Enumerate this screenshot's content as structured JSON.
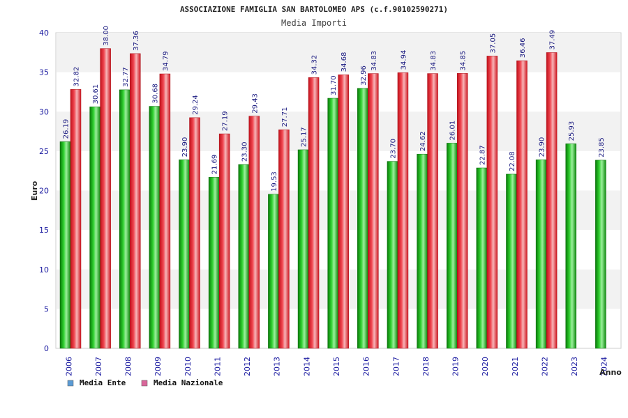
{
  "chart_data": {
    "type": "bar",
    "title": "ASSOCIAZIONE FAMIGLIA SAN BARTOLOMEO APS (c.f.90102590271)",
    "subtitle": "Media Importi",
    "xlabel": "Anno",
    "ylabel": "Euro",
    "ylim": [
      0,
      40
    ],
    "yticks": [
      0,
      5,
      10,
      15,
      20,
      25,
      30,
      35,
      40
    ],
    "grid": "horizontal-bands",
    "legend_position": "bottom-left",
    "categories": [
      "2006",
      "2007",
      "2008",
      "2009",
      "2010",
      "2011",
      "2012",
      "2013",
      "2014",
      "2015",
      "2016",
      "2017",
      "2018",
      "2019",
      "2020",
      "2021",
      "2022",
      "2023",
      "2024"
    ],
    "series": [
      {
        "name": "Media Ente",
        "color": "#16b016",
        "legend_color": "#5b9bd5",
        "values": [
          26.19,
          30.61,
          32.77,
          30.68,
          23.9,
          21.69,
          23.3,
          19.53,
          25.17,
          31.7,
          32.96,
          23.7,
          24.62,
          26.01,
          22.87,
          22.08,
          23.9,
          25.93,
          23.85
        ],
        "labels": [
          "26.19",
          "30.61",
          "32.77",
          "30.68",
          "23.90",
          "21.69",
          "23.30",
          "19.53",
          "25.17",
          "31.70",
          "32.96",
          "23.70",
          "24.62",
          "26.01",
          "22.87",
          "22.08",
          "23.90",
          "25.93",
          "23.85"
        ]
      },
      {
        "name": "Media Nazionale",
        "color": "#e8202a",
        "legend_color": "#d9669a",
        "values": [
          32.82,
          38.0,
          37.36,
          34.79,
          29.24,
          27.19,
          29.43,
          27.71,
          34.32,
          34.68,
          34.83,
          34.94,
          34.83,
          34.85,
          37.05,
          36.46,
          37.49,
          null,
          null
        ],
        "labels": [
          "32.82",
          "38.00",
          "37.36",
          "34.79",
          "29.24",
          "27.19",
          "29.43",
          "27.71",
          "34.32",
          "34.68",
          "34.83",
          "34.94",
          "34.83",
          "34.85",
          "37.05",
          "36.46",
          "37.49",
          null,
          null
        ]
      }
    ]
  }
}
